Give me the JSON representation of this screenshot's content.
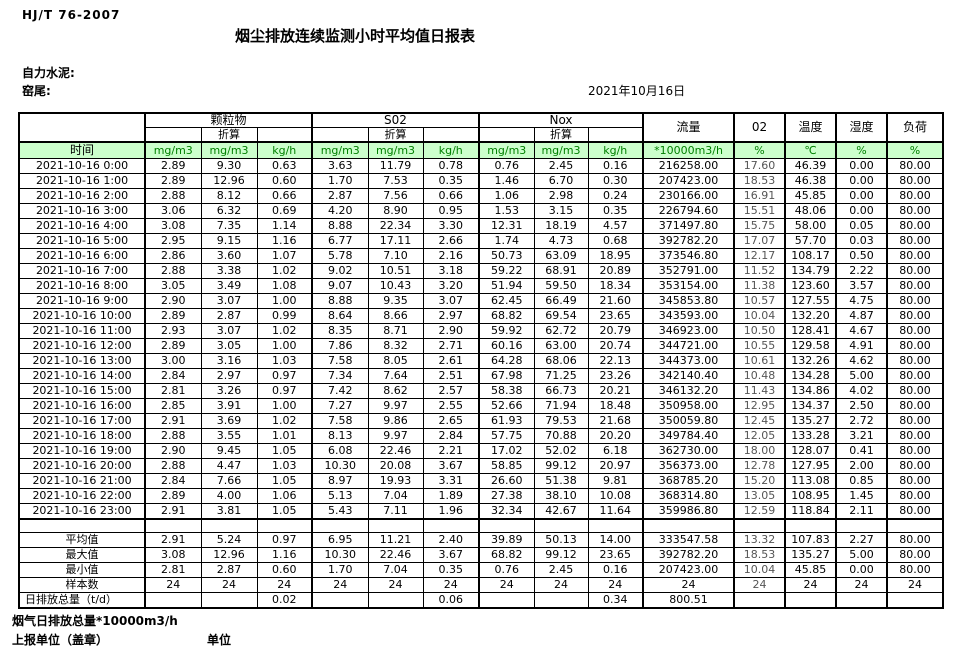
{
  "page": {
    "doc_code": "HJ/T  76-2007",
    "title": "烟尘排放连续监测小时平均值日报表",
    "company": "自力水泥:",
    "site": "窑尾:",
    "date": "2021年10月16日"
  },
  "colors": {
    "units_row_bg": "#ccffcc",
    "unit_text": "#008000",
    "border": "#000000"
  },
  "table": {
    "groups": [
      {
        "label": "颗粒物",
        "sub": "折算"
      },
      {
        "label": "S02",
        "sub": "折算"
      },
      {
        "label": "Nox",
        "sub": "折算"
      }
    ],
    "single_columns": [
      "流量",
      "02",
      "温度",
      "湿度",
      "负荷"
    ],
    "time_label": "时间",
    "units": [
      "mg/m3",
      "mg/m3",
      "kg/h",
      "mg/m3",
      "mg/m3",
      "kg/h",
      "mg/m3",
      "mg/m3",
      "kg/h",
      "*10000m3/h",
      "%",
      "℃",
      "%",
      "%"
    ],
    "rows": [
      {
        "time": "2021-10-16 0:00",
        "values": [
          "2.89",
          "9.30",
          "0.63",
          "3.63",
          "11.79",
          "0.78",
          "0.76",
          "2.45",
          "0.16",
          "216258.00",
          "17.60",
          "46.39",
          "0.00",
          "80.00"
        ]
      },
      {
        "time": "2021-10-16 1:00",
        "values": [
          "2.89",
          "12.96",
          "0.60",
          "1.70",
          "7.53",
          "0.35",
          "1.46",
          "6.70",
          "0.30",
          "207423.00",
          "18.53",
          "46.38",
          "0.00",
          "80.00"
        ]
      },
      {
        "time": "2021-10-16 2:00",
        "values": [
          "2.88",
          "8.12",
          "0.66",
          "2.87",
          "7.56",
          "0.66",
          "1.06",
          "2.98",
          "0.24",
          "230166.00",
          "16.91",
          "45.85",
          "0.00",
          "80.00"
        ]
      },
      {
        "time": "2021-10-16 3:00",
        "values": [
          "3.06",
          "6.32",
          "0.69",
          "4.20",
          "8.90",
          "0.95",
          "1.53",
          "3.15",
          "0.35",
          "226794.60",
          "15.51",
          "48.06",
          "0.00",
          "80.00"
        ]
      },
      {
        "time": "2021-10-16 4:00",
        "values": [
          "3.08",
          "7.35",
          "1.14",
          "8.88",
          "22.34",
          "3.30",
          "12.31",
          "18.19",
          "4.57",
          "371497.80",
          "15.75",
          "58.00",
          "0.05",
          "80.00"
        ]
      },
      {
        "time": "2021-10-16 5:00",
        "values": [
          "2.95",
          "9.15",
          "1.16",
          "6.77",
          "17.11",
          "2.66",
          "1.74",
          "4.73",
          "0.68",
          "392782.20",
          "17.07",
          "57.70",
          "0.03",
          "80.00"
        ]
      },
      {
        "time": "2021-10-16 6:00",
        "values": [
          "2.86",
          "3.60",
          "1.07",
          "5.78",
          "7.10",
          "2.16",
          "50.73",
          "63.09",
          "18.95",
          "373546.80",
          "12.17",
          "108.17",
          "0.50",
          "80.00"
        ]
      },
      {
        "time": "2021-10-16 7:00",
        "values": [
          "2.88",
          "3.38",
          "1.02",
          "9.02",
          "10.51",
          "3.18",
          "59.22",
          "68.91",
          "20.89",
          "352791.00",
          "11.52",
          "134.79",
          "2.22",
          "80.00"
        ]
      },
      {
        "time": "2021-10-16 8:00",
        "values": [
          "3.05",
          "3.49",
          "1.08",
          "9.07",
          "10.43",
          "3.20",
          "51.94",
          "59.50",
          "18.34",
          "353154.00",
          "11.38",
          "123.60",
          "3.57",
          "80.00"
        ]
      },
      {
        "time": "2021-10-16 9:00",
        "values": [
          "2.90",
          "3.07",
          "1.00",
          "8.88",
          "9.35",
          "3.07",
          "62.45",
          "66.49",
          "21.60",
          "345853.80",
          "10.57",
          "127.55",
          "4.75",
          "80.00"
        ]
      },
      {
        "time": "2021-10-16 10:00",
        "values": [
          "2.89",
          "2.87",
          "0.99",
          "8.64",
          "8.66",
          "2.97",
          "68.82",
          "69.54",
          "23.65",
          "343593.00",
          "10.04",
          "132.20",
          "4.87",
          "80.00"
        ]
      },
      {
        "time": "2021-10-16 11:00",
        "values": [
          "2.93",
          "3.07",
          "1.02",
          "8.35",
          "8.71",
          "2.90",
          "59.92",
          "62.72",
          "20.79",
          "346923.00",
          "10.50",
          "128.41",
          "4.67",
          "80.00"
        ]
      },
      {
        "time": "2021-10-16 12:00",
        "values": [
          "2.89",
          "3.05",
          "1.00",
          "7.86",
          "8.32",
          "2.71",
          "60.16",
          "63.00",
          "20.74",
          "344721.00",
          "10.55",
          "129.58",
          "4.91",
          "80.00"
        ]
      },
      {
        "time": "2021-10-16 13:00",
        "values": [
          "3.00",
          "3.16",
          "1.03",
          "7.58",
          "8.05",
          "2.61",
          "64.28",
          "68.06",
          "22.13",
          "344373.00",
          "10.61",
          "132.26",
          "4.62",
          "80.00"
        ]
      },
      {
        "time": "2021-10-16 14:00",
        "values": [
          "2.84",
          "2.97",
          "0.97",
          "7.34",
          "7.64",
          "2.51",
          "67.98",
          "71.25",
          "23.26",
          "342140.40",
          "10.48",
          "134.28",
          "5.00",
          "80.00"
        ]
      },
      {
        "time": "2021-10-16 15:00",
        "values": [
          "2.81",
          "3.26",
          "0.97",
          "7.42",
          "8.62",
          "2.57",
          "58.38",
          "66.73",
          "20.21",
          "346132.20",
          "11.43",
          "134.86",
          "4.02",
          "80.00"
        ]
      },
      {
        "time": "2021-10-16 16:00",
        "values": [
          "2.85",
          "3.91",
          "1.00",
          "7.27",
          "9.97",
          "2.55",
          "52.66",
          "71.94",
          "18.48",
          "350958.00",
          "12.95",
          "134.37",
          "2.50",
          "80.00"
        ]
      },
      {
        "time": "2021-10-16 17:00",
        "values": [
          "2.91",
          "3.69",
          "1.02",
          "7.58",
          "9.86",
          "2.65",
          "61.93",
          "79.53",
          "21.68",
          "350059.80",
          "12.45",
          "135.27",
          "2.72",
          "80.00"
        ]
      },
      {
        "time": "2021-10-16 18:00",
        "values": [
          "2.88",
          "3.55",
          "1.01",
          "8.13",
          "9.97",
          "2.84",
          "57.75",
          "70.88",
          "20.20",
          "349784.40",
          "12.05",
          "133.28",
          "3.21",
          "80.00"
        ]
      },
      {
        "time": "2021-10-16 19:00",
        "values": [
          "2.90",
          "9.45",
          "1.05",
          "6.08",
          "22.46",
          "2.21",
          "17.02",
          "52.02",
          "6.18",
          "362730.00",
          "18.00",
          "128.07",
          "0.41",
          "80.00"
        ]
      },
      {
        "time": "2021-10-16 20:00",
        "values": [
          "2.88",
          "4.47",
          "1.03",
          "10.30",
          "20.08",
          "3.67",
          "58.85",
          "99.12",
          "20.97",
          "356373.00",
          "12.78",
          "127.95",
          "2.00",
          "80.00"
        ]
      },
      {
        "time": "2021-10-16 21:00",
        "values": [
          "2.84",
          "7.66",
          "1.05",
          "8.97",
          "19.93",
          "3.31",
          "26.60",
          "51.38",
          "9.81",
          "368785.20",
          "15.20",
          "113.08",
          "0.85",
          "80.00"
        ]
      },
      {
        "time": "2021-10-16 22:00",
        "values": [
          "2.89",
          "4.00",
          "1.06",
          "5.13",
          "7.04",
          "1.89",
          "27.38",
          "38.10",
          "10.08",
          "368314.80",
          "13.05",
          "108.95",
          "1.45",
          "80.00"
        ]
      },
      {
        "time": "2021-10-16 23:00",
        "values": [
          "2.91",
          "3.81",
          "1.05",
          "5.43",
          "7.11",
          "1.96",
          "32.34",
          "42.67",
          "11.64",
          "359986.80",
          "12.59",
          "118.84",
          "2.11",
          "80.00"
        ]
      }
    ],
    "summary": [
      {
        "label": "平均值",
        "values": [
          "2.91",
          "5.24",
          "0.97",
          "6.95",
          "11.21",
          "2.40",
          "39.89",
          "50.13",
          "14.00",
          "333547.58",
          "13.32",
          "107.83",
          "2.27",
          "80.00"
        ]
      },
      {
        "label": "最大值",
        "values": [
          "3.08",
          "12.96",
          "1.16",
          "10.30",
          "22.46",
          "3.67",
          "68.82",
          "99.12",
          "23.65",
          "392782.20",
          "18.53",
          "135.27",
          "5.00",
          "80.00"
        ]
      },
      {
        "label": "最小值",
        "values": [
          "2.81",
          "2.87",
          "0.60",
          "1.70",
          "7.04",
          "0.35",
          "0.76",
          "2.45",
          "0.16",
          "207423.00",
          "10.04",
          "45.85",
          "0.00",
          "80.00"
        ]
      },
      {
        "label": "样本数",
        "values": [
          "24",
          "24",
          "24",
          "24",
          "24",
          "24",
          "24",
          "24",
          "24",
          "24",
          "24",
          "24",
          "24",
          "24"
        ]
      },
      {
        "label": "日排放总量（t/d）",
        "values": [
          "",
          "",
          "0.02",
          "",
          "",
          "0.06",
          "",
          "",
          "0.34",
          "800.51",
          "",
          "",
          "",
          ""
        ]
      }
    ]
  },
  "footer": {
    "flow_total_note": "烟气日排放总量*10000m3/h",
    "report_unit_label": "上报单位（盖章）",
    "unit_label": "单位"
  }
}
